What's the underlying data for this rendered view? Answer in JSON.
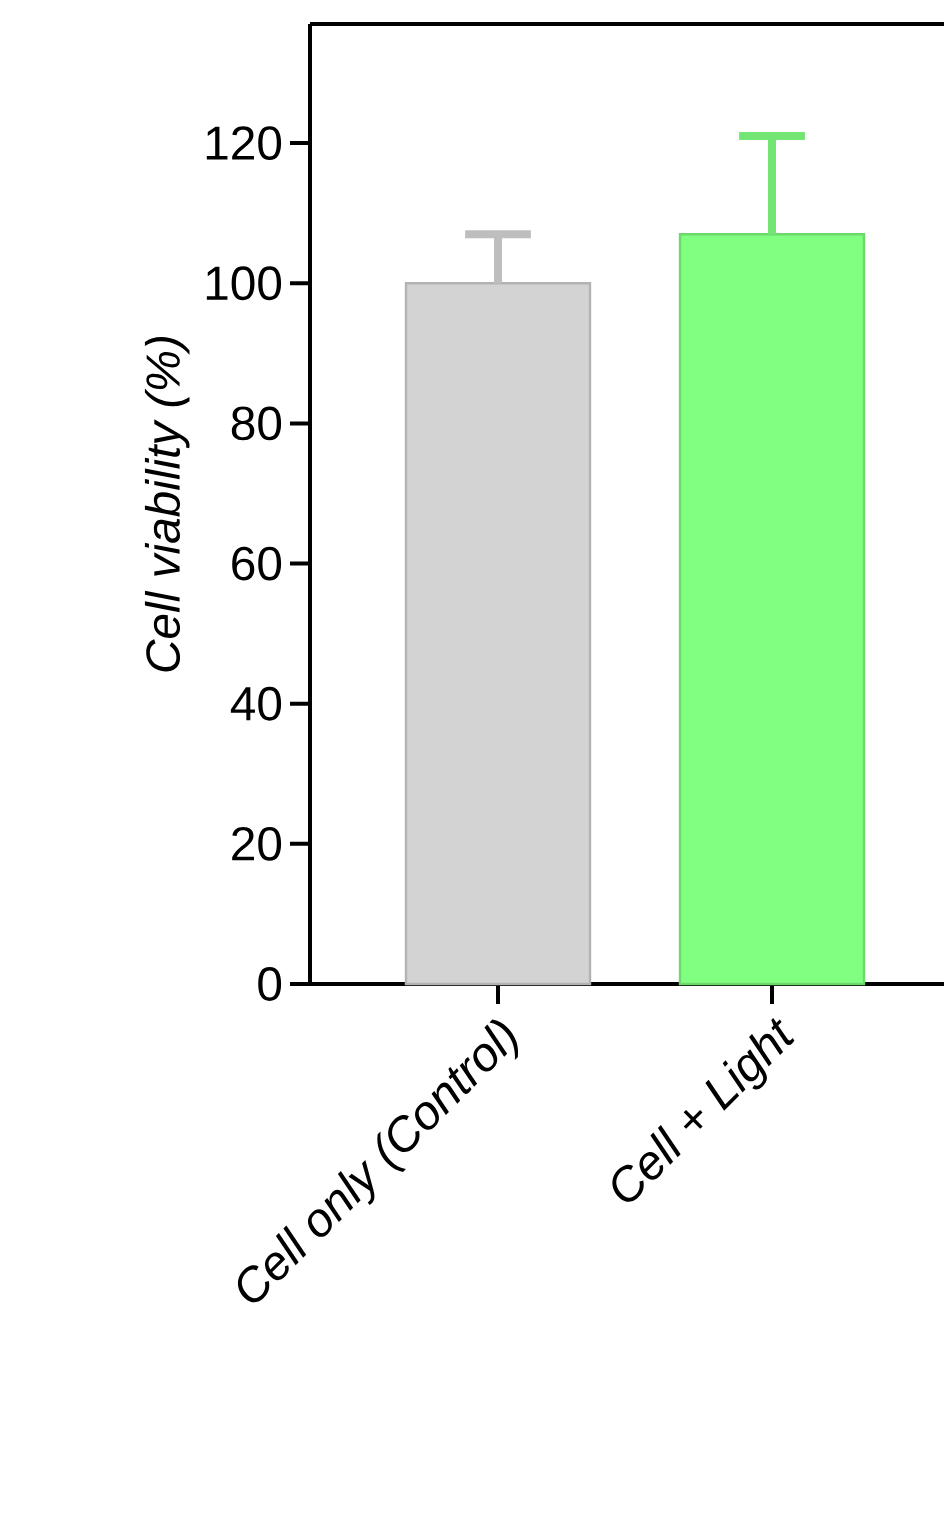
{
  "chart_data": {
    "type": "bar",
    "ylabel": "Cell viability (%)",
    "categories": [
      "Cell only (Control)",
      "Cell + Light"
    ],
    "values": [
      100,
      107
    ],
    "errors": [
      [
        100,
        107
      ],
      [
        107,
        121
      ]
    ],
    "colors": [
      "#d3d3d3",
      "#80ff80"
    ],
    "ylim": [
      0,
      137
    ],
    "yticks": [
      0,
      20,
      40,
      60,
      80,
      100,
      120
    ],
    "grid": false
  }
}
